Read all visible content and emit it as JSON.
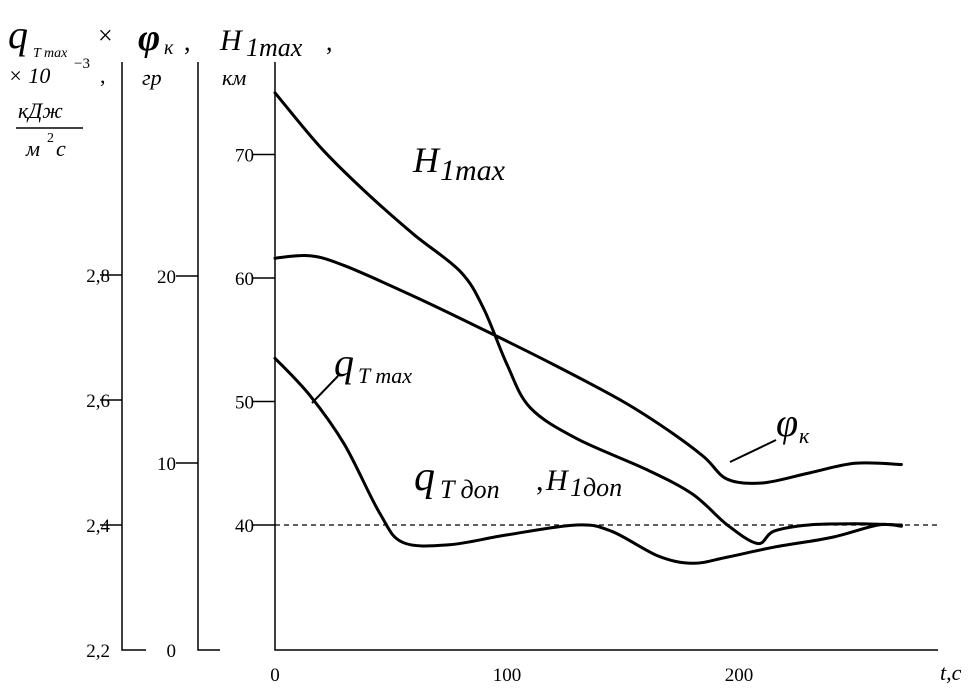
{
  "chart_data": {
    "type": "line",
    "labels": {
      "axis_q_name": "q",
      "axis_q_sub": "T max",
      "axis_q_times": "×",
      "axis_q_scale": "× 10",
      "axis_q_exp": "−3",
      "axis_q_comma": ",",
      "axis_q_unit_num": "кДж",
      "axis_q_unit_den": "м",
      "axis_q_unit_den_exp": "2",
      "axis_q_unit_den_tail": "с",
      "axis_phi_name": "φ",
      "axis_phi_sub": "к",
      "axis_phi_unit": "гр",
      "axis_h_name": "H",
      "axis_h_sub": "1max",
      "axis_h_unit": "км",
      "x_axis_label": "t,с",
      "comma": ","
    },
    "axes": {
      "t": {
        "ticks": [
          "0",
          "100",
          "200"
        ],
        "range": [
          0,
          270
        ]
      },
      "q": {
        "ticks": [
          "2,2",
          "2,4",
          "2,6",
          "2,8"
        ],
        "range": [
          2.2,
          2.95
        ]
      },
      "phi": {
        "ticks": [
          "0",
          "10",
          "20"
        ],
        "range": [
          0,
          26
        ]
      },
      "h": {
        "ticks": [
          "40",
          "50",
          "60",
          "70"
        ],
        "range": [
          30,
          80
        ]
      }
    },
    "reference_line": {
      "axis": "h",
      "value": 40,
      "style": "dashed"
    },
    "series": [
      {
        "name": "H1max",
        "label_main": "H",
        "label_sub": "1max",
        "axis": "h",
        "points": [
          [
            0,
            75
          ],
          [
            20,
            70.5
          ],
          [
            40,
            66.8
          ],
          [
            60,
            63.5
          ],
          [
            80,
            60.5
          ],
          [
            90,
            57.5
          ],
          [
            100,
            53
          ],
          [
            110,
            49.5
          ],
          [
            130,
            47
          ],
          [
            160,
            44.5
          ],
          [
            180,
            42.5
          ],
          [
            195,
            40
          ],
          [
            208,
            38.5
          ],
          [
            215,
            39.5
          ],
          [
            230,
            40
          ],
          [
            250,
            40.1
          ],
          [
            270,
            40
          ]
        ]
      },
      {
        "name": "φк",
        "label_main": "φ",
        "label_sub": "к",
        "axis": "h",
        "points": [
          [
            0,
            61.6
          ],
          [
            15,
            61.8
          ],
          [
            30,
            61
          ],
          [
            60,
            58.5
          ],
          [
            90,
            55.8
          ],
          [
            120,
            53
          ],
          [
            150,
            50
          ],
          [
            170,
            47.6
          ],
          [
            185,
            45.5
          ],
          [
            195,
            43.7
          ],
          [
            210,
            43.4
          ],
          [
            230,
            44.2
          ],
          [
            250,
            45
          ],
          [
            270,
            44.9
          ]
        ]
      },
      {
        "name": "qTmax",
        "label_main": "q",
        "label_sub": "T max",
        "axis": "h",
        "points": [
          [
            0,
            53.5
          ],
          [
            15,
            50.5
          ],
          [
            30,
            46.5
          ],
          [
            45,
            41
          ],
          [
            55,
            38.6
          ],
          [
            75,
            38.4
          ],
          [
            100,
            39.2
          ],
          [
            130,
            40
          ],
          [
            145,
            39.5
          ],
          [
            165,
            37.5
          ],
          [
            180,
            36.9
          ],
          [
            195,
            37.4
          ],
          [
            215,
            38.2
          ],
          [
            240,
            39
          ],
          [
            260,
            40
          ],
          [
            270,
            39.9
          ]
        ]
      }
    ],
    "annotations": {
      "qTdop_q": "q",
      "qTdop_sub": "T доп",
      "h1dop_h": "H",
      "h1dop_sub": "1доп"
    }
  }
}
